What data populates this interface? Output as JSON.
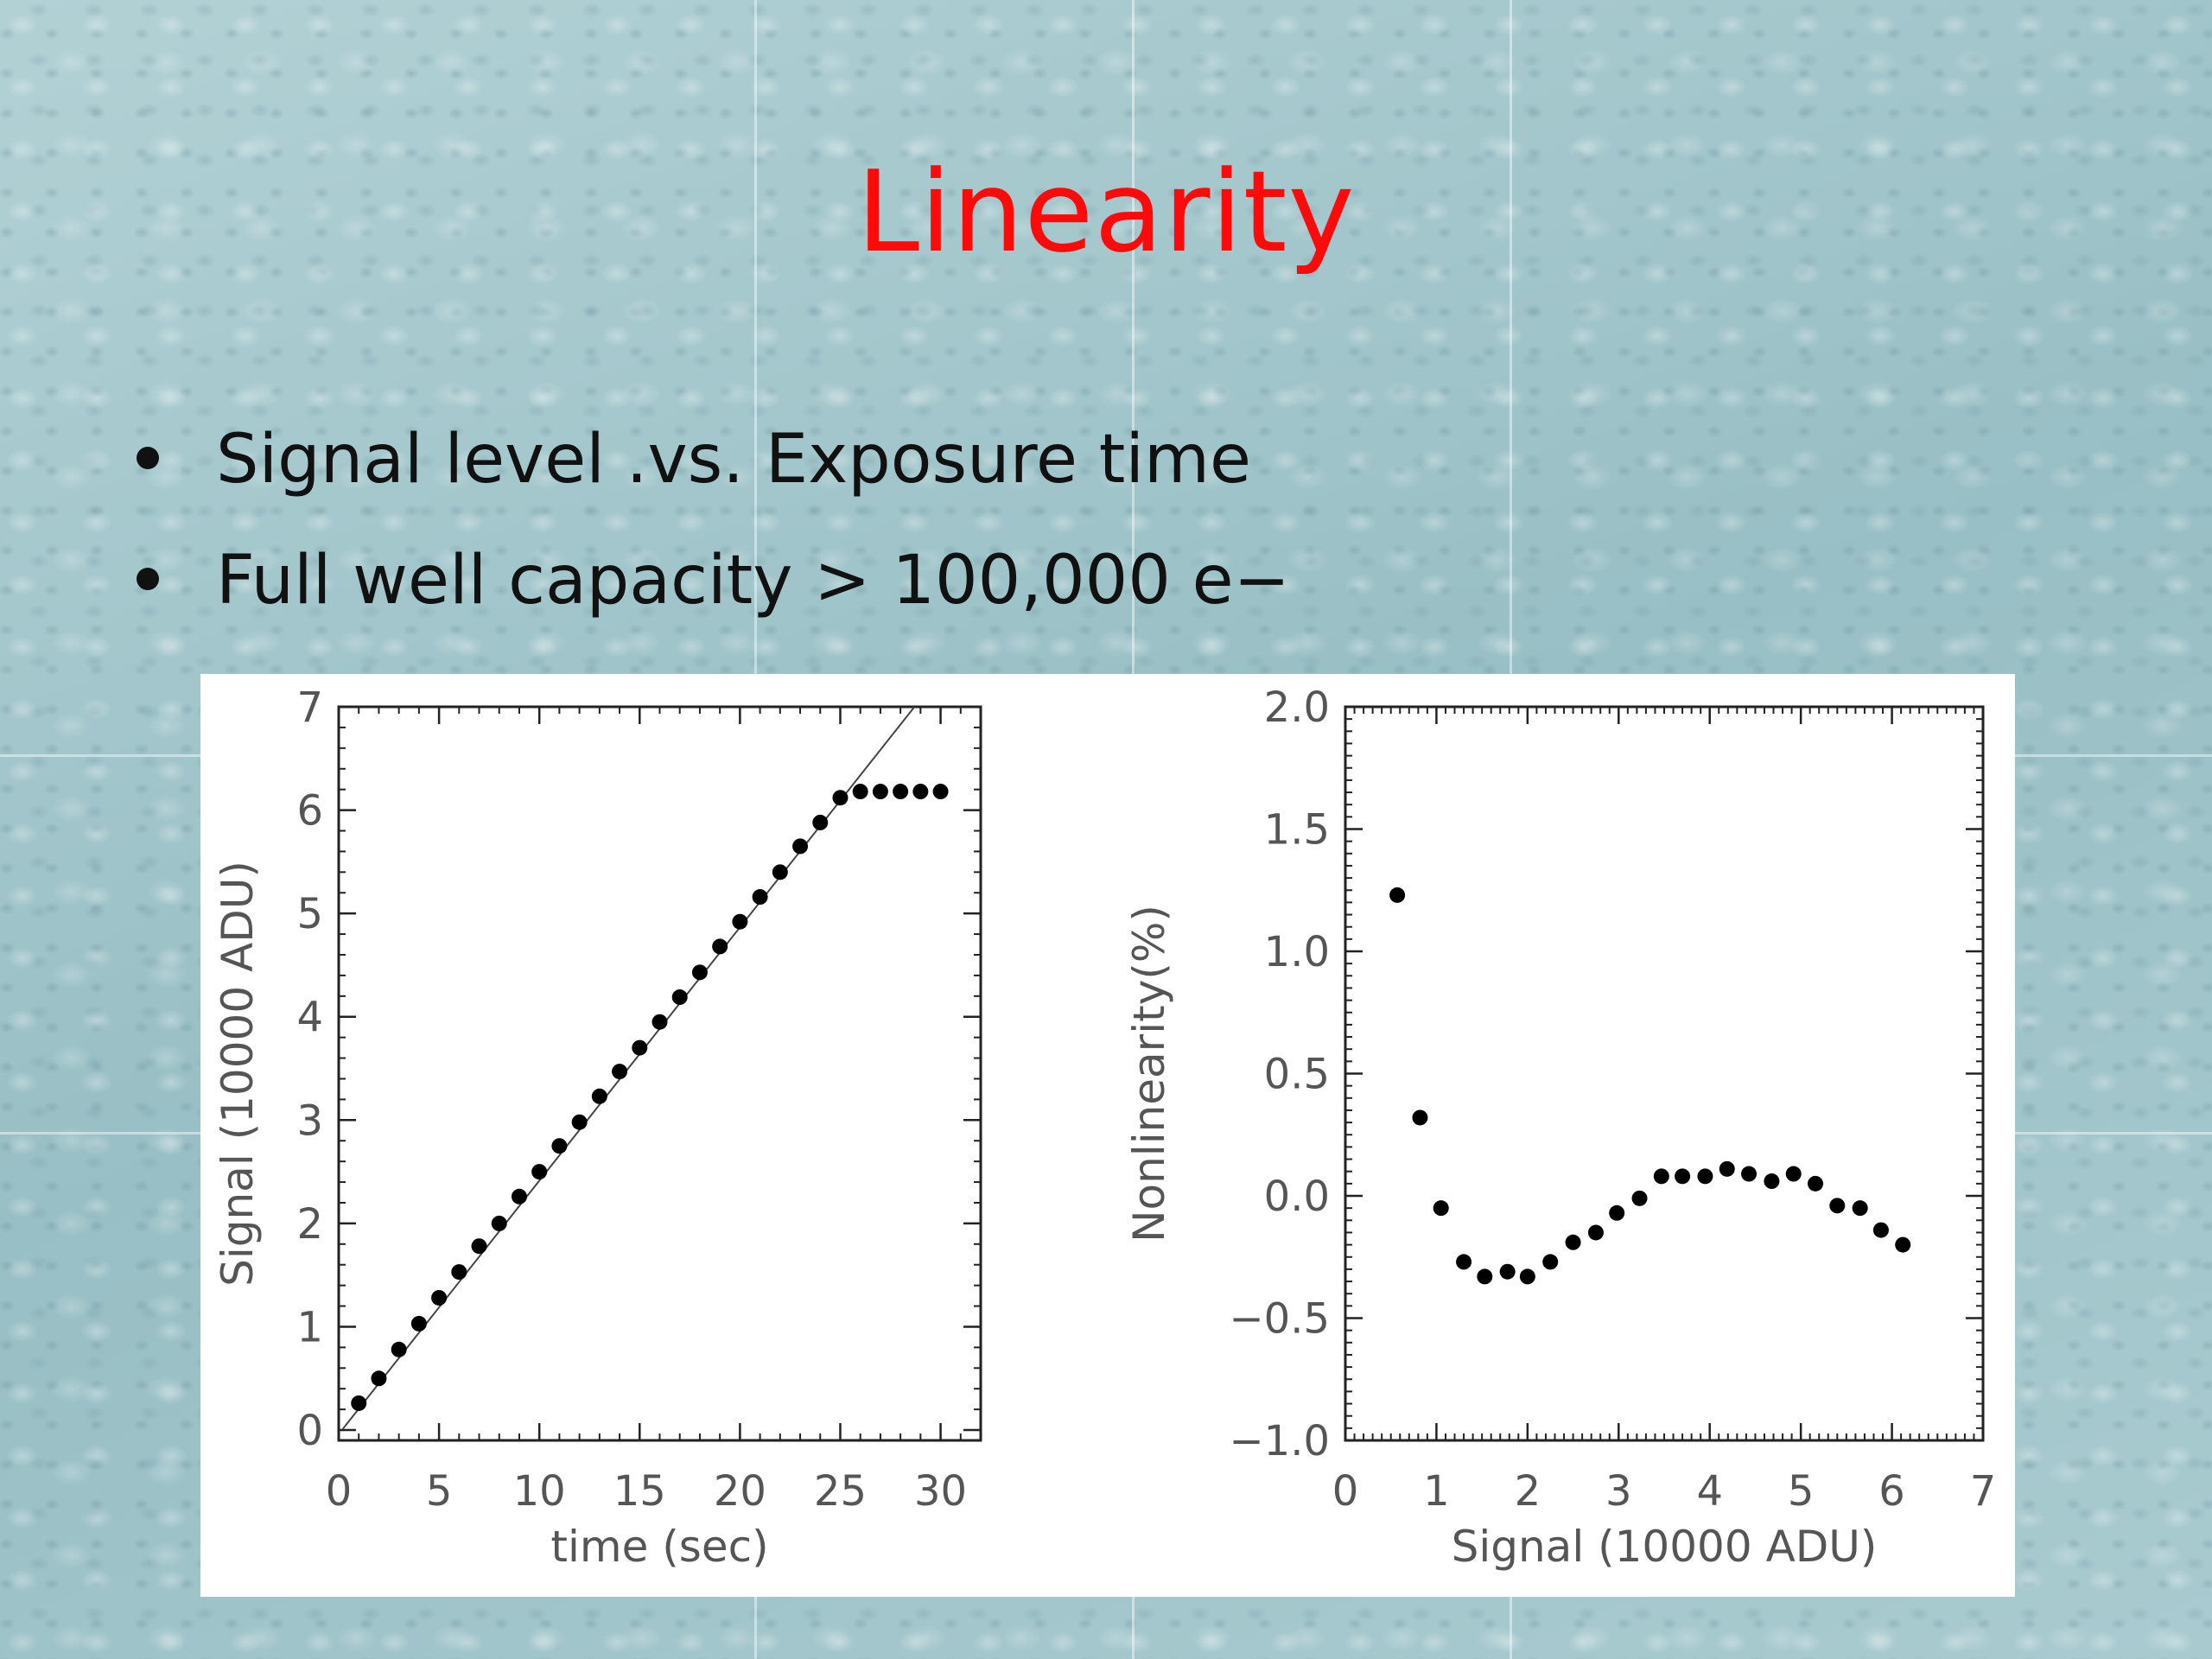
{
  "slide": {
    "title": "Linearity",
    "bullets": [
      "Signal level .vs. Exposure time",
      "Full well capacity > 100,000 e−"
    ]
  },
  "chart_data": [
    {
      "type": "scatter",
      "xlabel": "time (sec)",
      "ylabel": "Signal (10000 ADU)",
      "xlim": [
        0,
        32
      ],
      "ylim": [
        -0.1,
        7
      ],
      "xticks": [
        "0",
        "5",
        "10",
        "15",
        "20",
        "25",
        "30"
      ],
      "yticks": [
        "0",
        "1",
        "2",
        "3",
        "4",
        "5",
        "6",
        "7"
      ],
      "grid": false,
      "series": [
        {
          "x": [
            1,
            2,
            3,
            4,
            5,
            6,
            7,
            8,
            9,
            10,
            11,
            12,
            13,
            14,
            15,
            16,
            17,
            18,
            19,
            20,
            21,
            22,
            23,
            24,
            25,
            26,
            27,
            28,
            29,
            30
          ],
          "y": [
            0.26,
            0.5,
            0.78,
            1.03,
            1.28,
            1.53,
            1.78,
            2.0,
            2.26,
            2.5,
            2.75,
            2.98,
            3.23,
            3.47,
            3.7,
            3.95,
            4.19,
            4.43,
            4.68,
            4.92,
            5.16,
            5.4,
            5.65,
            5.88,
            6.12,
            6.18,
            6.18,
            6.18,
            6.18,
            6.18
          ]
        }
      ],
      "fit_line": {
        "x": [
          0.2,
          28.7
        ],
        "y": [
          0.01,
          7.0
        ]
      }
    },
    {
      "type": "scatter",
      "xlabel": "Signal (10000 ADU)",
      "ylabel": "Nonlinearity(%)",
      "xlim": [
        0,
        7
      ],
      "ylim": [
        -1.0,
        2.0
      ],
      "xticks": [
        "0",
        "1",
        "2",
        "3",
        "4",
        "5",
        "6",
        "7"
      ],
      "yticks": [
        "−1.0",
        "−0.5",
        "0.0",
        "0.5",
        "1.0",
        "1.5",
        "2.0"
      ],
      "grid": false,
      "series": [
        {
          "x": [
            0.57,
            0.82,
            1.05,
            1.3,
            1.53,
            1.78,
            2.0,
            2.25,
            2.5,
            2.75,
            2.98,
            3.23,
            3.47,
            3.7,
            3.95,
            4.19,
            4.43,
            4.68,
            4.92,
            5.16,
            5.4,
            5.65,
            5.88,
            6.12
          ],
          "y": [
            1.23,
            0.32,
            -0.05,
            -0.27,
            -0.33,
            -0.31,
            -0.33,
            -0.27,
            -0.19,
            -0.15,
            -0.07,
            -0.01,
            0.08,
            0.08,
            0.08,
            0.11,
            0.09,
            0.06,
            0.09,
            0.05,
            -0.04,
            -0.05,
            -0.14,
            -0.2
          ]
        }
      ]
    }
  ]
}
